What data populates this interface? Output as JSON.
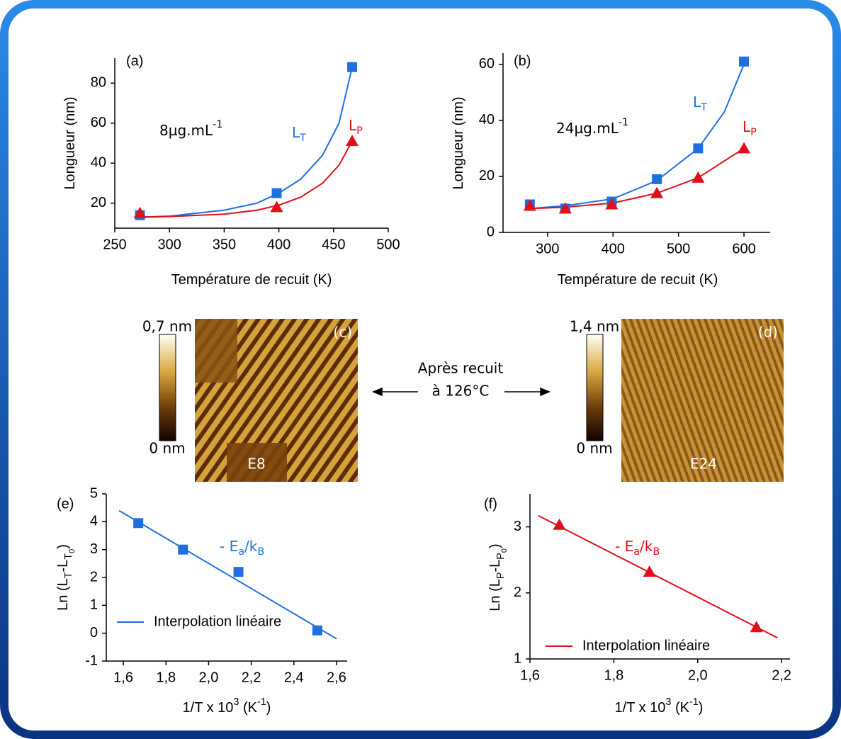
{
  "chart_data": [
    {
      "type": "scatter",
      "panel": "(a)",
      "xlabel": [
        {
          "t": "Température de recuit (K)"
        }
      ],
      "ylabel": [
        {
          "t": "Longueur (nm)"
        }
      ],
      "xlim": [
        250,
        500
      ],
      "ylim": [
        7.5,
        92.5
      ],
      "xticks": [
        250,
        300,
        350,
        400,
        450,
        500
      ],
      "yticks": [
        20,
        40,
        60,
        80
      ],
      "annotations": [
        {
          "parts": [
            {
              "t": "8µg.mL"
            },
            {
              "t": "-1",
              "level": -1
            }
          ],
          "color": "#000000"
        },
        {
          "parts": [
            {
              "t": "L"
            },
            {
              "t": "T",
              "level": 1
            }
          ],
          "color": "#1f6fe0"
        },
        {
          "parts": [
            {
              "t": "L"
            },
            {
              "t": "P",
              "level": 1
            }
          ],
          "color": "#e0101a"
        }
      ],
      "series": [
        {
          "kind": "fit",
          "color": "#1f6fe0",
          "x": [
            273,
            300,
            350,
            380,
            400,
            420,
            440,
            455,
            467
          ],
          "values": [
            13,
            13.5,
            16.5,
            20,
            25,
            32,
            44,
            60,
            88
          ]
        },
        {
          "kind": "fit",
          "color": "#e0101a",
          "x": [
            273,
            300,
            350,
            380,
            400,
            420,
            440,
            455,
            467
          ],
          "values": [
            13,
            13.3,
            14.5,
            16.5,
            19,
            23,
            30,
            39,
            51
          ]
        },
        {
          "marker": "square",
          "color": "#1f6fe0",
          "x": [
            273,
            398,
            467
          ],
          "values": [
            14,
            25,
            88
          ]
        },
        {
          "marker": "triangle",
          "color": "#e0101a",
          "x": [
            273,
            398,
            467
          ],
          "values": [
            15,
            18,
            51
          ]
        }
      ]
    },
    {
      "type": "scatter",
      "panel": "(b)",
      "xlabel": [
        {
          "t": "Température de recuit (K)"
        }
      ],
      "ylabel": [
        {
          "t": "Longueur (nm)"
        }
      ],
      "xlim": [
        232,
        640
      ],
      "ylim": [
        0,
        64
      ],
      "xticks": [
        300,
        400,
        500,
        600
      ],
      "yticks": [
        0,
        20,
        40,
        60
      ],
      "annotations": [
        {
          "parts": [
            {
              "t": "24µg.mL"
            },
            {
              "t": "-1",
              "level": -1
            }
          ],
          "color": "#000000"
        },
        {
          "parts": [
            {
              "t": "L"
            },
            {
              "t": "T",
              "level": 1
            }
          ],
          "color": "#1f6fe0"
        },
        {
          "parts": [
            {
              "t": "L"
            },
            {
              "t": "P",
              "level": 1
            }
          ],
          "color": "#e0101a"
        }
      ],
      "series": [
        {
          "kind": "fit",
          "color": "#1f6fe0",
          "x": [
            273,
            327,
            400,
            467,
            530,
            570,
            600
          ],
          "values": [
            8.5,
            9.5,
            12,
            18.5,
            30,
            43,
            60
          ]
        },
        {
          "kind": "fit",
          "color": "#e0101a",
          "x": [
            273,
            327,
            400,
            467,
            530,
            600
          ],
          "values": [
            8.5,
            9,
            10.5,
            14,
            19.5,
            30
          ]
        },
        {
          "marker": "square",
          "color": "#1f6fe0",
          "x": [
            273,
            327,
            398,
            467,
            530,
            600
          ],
          "values": [
            10,
            8.5,
            11,
            19,
            30,
            61
          ]
        },
        {
          "marker": "triangle",
          "color": "#e0101a",
          "x": [
            273,
            327,
            398,
            467,
            530,
            600
          ],
          "values": [
            9.5,
            8.5,
            10,
            14,
            19.5,
            30
          ]
        }
      ]
    },
    {
      "type": "scatter",
      "panel": "(e)",
      "xlabel": [
        {
          "t": "1/T x 10"
        },
        {
          "t": "3",
          "level": -1
        },
        {
          "t": " (K"
        },
        {
          "t": "-1",
          "level": -1
        },
        {
          "t": ")"
        }
      ],
      "ylabel": [
        {
          "t": "Ln (L"
        },
        {
          "t": "T",
          "level": 1
        },
        {
          "t": "-L"
        },
        {
          "t": "T",
          "level": 1
        },
        {
          "t": "0",
          "level": 2
        },
        {
          "t": ")"
        }
      ],
      "xlim": [
        1.52,
        2.65
      ],
      "ylim": [
        -1,
        5
      ],
      "xticks": [
        {
          "value": 1.6,
          "label": "1,6"
        },
        {
          "value": 1.8,
          "label": "1,8"
        },
        {
          "value": 2.0,
          "label": "2,0"
        },
        {
          "value": 2.2,
          "label": "2,2"
        },
        {
          "value": 2.4,
          "label": "2,4"
        },
        {
          "value": 2.6,
          "label": "2,6"
        }
      ],
      "yticks": [
        -1,
        0,
        1,
        2,
        3,
        4,
        5
      ],
      "annotations": [
        {
          "parts": [
            {
              "t": "- E"
            },
            {
              "t": "a",
              "level": 1
            },
            {
              "t": "/k"
            },
            {
              "t": "B",
              "level": 1
            }
          ],
          "color": "#1f6fe0"
        }
      ],
      "series": [
        {
          "kind": "fit",
          "name": "Interpolation linéaire",
          "color": "#1f6fe0",
          "x": [
            1.58,
            2.6
          ],
          "values": [
            4.4,
            -0.2
          ]
        },
        {
          "marker": "square",
          "color": "#1f6fe0",
          "x": [
            1.67,
            1.88,
            2.14,
            2.51
          ],
          "values": [
            3.95,
            3.0,
            2.2,
            0.1
          ]
        }
      ]
    },
    {
      "type": "scatter",
      "panel": "(f)",
      "xlabel": [
        {
          "t": "1/T x 10"
        },
        {
          "t": "3",
          "level": -1
        },
        {
          "t": " (K"
        },
        {
          "t": "-1",
          "level": -1
        },
        {
          "t": ")"
        }
      ],
      "ylabel": [
        {
          "t": "Ln (L"
        },
        {
          "t": "P",
          "level": 1
        },
        {
          "t": "-L"
        },
        {
          "t": "P",
          "level": 1
        },
        {
          "t": "0",
          "level": 2
        },
        {
          "t": ")"
        }
      ],
      "xlim": [
        1.6,
        2.22
      ],
      "ylim": [
        1,
        3.5
      ],
      "xticks": [
        {
          "value": 1.6,
          "label": "1,6"
        },
        {
          "value": 1.8,
          "label": "1,8"
        },
        {
          "value": 2.0,
          "label": "2,0"
        },
        {
          "value": 2.2,
          "label": "2,2"
        }
      ],
      "yticks": [
        1,
        2,
        3
      ],
      "annotations": [
        {
          "parts": [
            {
              "t": "- E"
            },
            {
              "t": "a",
              "level": 1
            },
            {
              "t": "/k"
            },
            {
              "t": "B",
              "level": 1
            }
          ],
          "color": "#e0101a"
        }
      ],
      "series": [
        {
          "kind": "fit",
          "name": "Interpolation linéaire",
          "color": "#e0101a",
          "x": [
            1.62,
            2.19
          ],
          "values": [
            3.17,
            1.32
          ]
        },
        {
          "marker": "triangle",
          "color": "#e0101a",
          "x": [
            1.67,
            1.885,
            2.14
          ],
          "values": [
            3.03,
            2.32,
            1.48
          ]
        }
      ]
    }
  ],
  "images": [
    {
      "panel": "(c)",
      "label": "E8",
      "scale_max": "0,7 nm",
      "scale_min": "0 nm"
    },
    {
      "panel": "(d)",
      "label": "E24",
      "scale_max": "1,4 nm",
      "scale_min": "0 nm"
    }
  ],
  "center_text": [
    "Après recuit",
    "à 126°C"
  ]
}
